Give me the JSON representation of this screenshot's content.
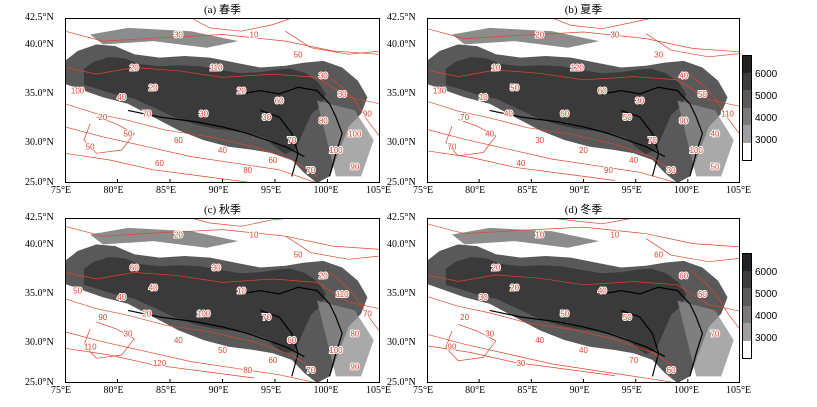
{
  "panels": [
    {
      "id": "a",
      "title": "(a) 春季",
      "contour_labels": [
        "10",
        "20",
        "30",
        "40",
        "50",
        "20",
        "30",
        "20",
        "30",
        "30",
        "50",
        "60",
        "40",
        "60",
        "70",
        "100",
        "20",
        "30",
        "50",
        "60",
        "80",
        "100",
        "90",
        "70",
        "100",
        "110",
        "90",
        "70",
        "80",
        "60"
      ]
    },
    {
      "id": "b",
      "title": "(b) 夏季",
      "contour_labels": [
        "30",
        "10",
        "20",
        "10",
        "30",
        "60",
        "40",
        "50",
        "50",
        "50",
        "40",
        "30",
        "20",
        "40",
        "30",
        "40",
        "70",
        "60",
        "70",
        "40",
        "90",
        "100",
        "110",
        "70",
        "130",
        "120",
        "50",
        "40",
        "90",
        "30"
      ]
    },
    {
      "id": "c",
      "title": "(c) 秋季",
      "contour_labels": [
        "10",
        "60",
        "20",
        "40",
        "50",
        "10",
        "20",
        "40",
        "70",
        "110",
        "30",
        "40",
        "50",
        "60",
        "70",
        "80",
        "90",
        "100",
        "110",
        "120",
        "80",
        "100",
        "70",
        "60",
        "50",
        "30",
        "90",
        "20"
      ]
    },
    {
      "id": "d",
      "title": "(d) 冬季",
      "contour_labels": [
        "10",
        "20",
        "10",
        "30",
        "60",
        "40",
        "60",
        "20",
        "50",
        "60",
        "30",
        "40",
        "40",
        "70",
        "60",
        "70",
        "20",
        "50",
        "90",
        "30"
      ]
    }
  ],
  "axes": {
    "x_ticks": [
      "75°E",
      "80°E",
      "85°E",
      "90°E",
      "95°E",
      "100°E",
      "105°E"
    ],
    "y_ticks": [
      "42.5°N",
      "40.0°N",
      "35.0°N",
      "30.0°N",
      "25.0°N"
    ]
  },
  "colorbar": {
    "labels": [
      "6000",
      "5000",
      "4000",
      "3000"
    ],
    "colors": [
      "#222222",
      "#3d3d3d",
      "#5a5a5a",
      "#7a7a7a",
      "#a0a0a0",
      "#ffffff"
    ]
  },
  "colors": {
    "contour": "#e0452f",
    "terrain_dark": "#2a2a2a",
    "terrain_mid": "#595959",
    "terrain_light": "#8c8c8c",
    "border": "#000000"
  }
}
